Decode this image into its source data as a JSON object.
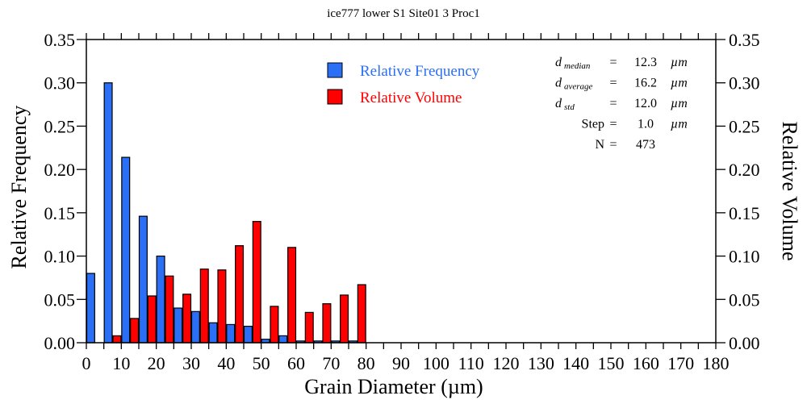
{
  "chart_data": {
    "type": "bar",
    "title": "ice777 lower S1 Site01 3 Proc1",
    "xlabel": "Grain Diameter (µm)",
    "ylabel": "Relative Frequency",
    "ylabel_right": "Relative Volume",
    "xlim": [
      0,
      180
    ],
    "ylim": [
      0,
      0.35
    ],
    "xticks": [
      "0",
      "10",
      "20",
      "30",
      "40",
      "50",
      "60",
      "70",
      "80",
      "90",
      "100",
      "110",
      "120",
      "130",
      "140",
      "150",
      "160",
      "170",
      "180"
    ],
    "yticks": [
      "0.00",
      "0.05",
      "0.10",
      "0.15",
      "0.20",
      "0.25",
      "0.30",
      "0.35"
    ],
    "bin_width": 5,
    "categories": [
      0,
      5,
      10,
      15,
      20,
      25,
      30,
      35,
      40,
      45,
      50,
      55,
      60,
      65,
      70,
      75
    ],
    "series": [
      {
        "name": "Relative Frequency",
        "color": "#2a6ff5",
        "values": [
          0.08,
          0.3,
          0.214,
          0.146,
          0.1,
          0.04,
          0.036,
          0.023,
          0.021,
          0.019,
          0.004,
          0.008,
          0.002,
          0.002,
          0.002,
          0.002
        ]
      },
      {
        "name": "Relative Volume",
        "color": "#ff0000",
        "values": [
          0.0,
          0.008,
          0.028,
          0.054,
          0.077,
          0.056,
          0.085,
          0.084,
          0.112,
          0.14,
          0.042,
          0.11,
          0.035,
          0.045,
          0.055,
          0.067
        ]
      }
    ],
    "legend": "top-center",
    "grid": false
  },
  "stats": [
    {
      "label": "d",
      "sub": "median",
      "eq": "=",
      "value": "12.3",
      "unit": "µm"
    },
    {
      "label": "d",
      "sub": "average",
      "eq": "=",
      "value": "16.2",
      "unit": "µm"
    },
    {
      "label": "d",
      "sub": "std",
      "eq": "=",
      "value": "12.0",
      "unit": "µm"
    },
    {
      "label": "Step",
      "sub": "",
      "eq": "=",
      "value": "1.0",
      "unit": "µm"
    },
    {
      "label": "N",
      "sub": "",
      "eq": "=",
      "value": "473",
      "unit": ""
    }
  ]
}
